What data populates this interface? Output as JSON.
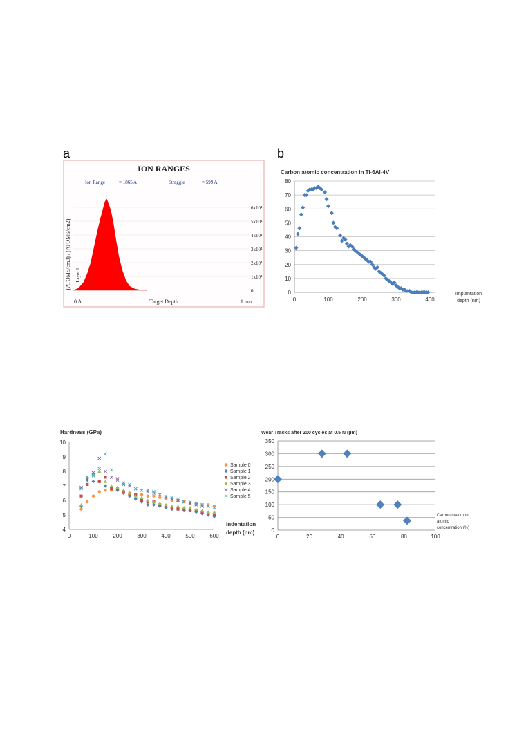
{
  "panels": {
    "a": "a",
    "b": "b"
  },
  "chart_data": [
    {
      "type": "area",
      "title": "ION RANGES",
      "ion_range_label": "Ion Range",
      "ion_range_value": "= 1865 A",
      "straggle_label": "Straggle",
      "straggle_value": "= 599 A",
      "xlabel": "Target Depth",
      "ylabel": "(ATOMS/cm3) / (ATOMS/cm2)",
      "layer_label": "Layer 1",
      "x_tick_labels": [
        "0 A",
        "1 um"
      ],
      "xlim": [
        0,
        10000
      ],
      "ylim": [
        0,
        70000
      ],
      "y_ticks": [
        {
          "v": 0,
          "label": "0"
        },
        {
          "v": 10000,
          "label": "1x10⁴"
        },
        {
          "v": 20000,
          "label": "2x10⁴"
        },
        {
          "v": 30000,
          "label": "3x10⁴"
        },
        {
          "v": 40000,
          "label": "4x10⁴"
        },
        {
          "v": 50000,
          "label": "5x10⁴"
        },
        {
          "v": 60000,
          "label": "6x10⁴"
        }
      ],
      "color": "#ff0000",
      "x": [
        0,
        300,
        600,
        800,
        1000,
        1200,
        1400,
        1550,
        1700,
        1800,
        1900,
        2000,
        2150,
        2300,
        2450,
        2600,
        2800,
        3000,
        3200,
        3500,
        3800,
        4200
      ],
      "y": [
        0,
        1500,
        6000,
        12000,
        20000,
        32000,
        44000,
        52000,
        59000,
        64000,
        66000,
        63000,
        57000,
        47000,
        35000,
        24000,
        14000,
        7000,
        3000,
        1000,
        300,
        0
      ]
    },
    {
      "type": "scatter",
      "title": "Carbon atomic concentration in Ti-6Al-4V",
      "xlabel_lines": [
        "Implantation",
        "depth (nm)"
      ],
      "xlim": [
        0,
        400
      ],
      "ylim": [
        0,
        80
      ],
      "x_ticks": [
        0,
        100,
        200,
        300,
        400
      ],
      "y_ticks": [
        0,
        10,
        20,
        30,
        40,
        50,
        60,
        70,
        80
      ],
      "color": "#4a7ebb",
      "points": [
        [
          5,
          32
        ],
        [
          10,
          42
        ],
        [
          15,
          46
        ],
        [
          20,
          56
        ],
        [
          25,
          61
        ],
        [
          30,
          70
        ],
        [
          35,
          70
        ],
        [
          40,
          73
        ],
        [
          45,
          74
        ],
        [
          50,
          74
        ],
        [
          55,
          74
        ],
        [
          60,
          75
        ],
        [
          65,
          75
        ],
        [
          70,
          76
        ],
        [
          75,
          75
        ],
        [
          80,
          74
        ],
        [
          90,
          72
        ],
        [
          95,
          67
        ],
        [
          100,
          62
        ],
        [
          110,
          57
        ],
        [
          115,
          50
        ],
        [
          120,
          47
        ],
        [
          125,
          46
        ],
        [
          135,
          41
        ],
        [
          140,
          37
        ],
        [
          145,
          39
        ],
        [
          150,
          38
        ],
        [
          155,
          35
        ],
        [
          160,
          33
        ],
        [
          165,
          34
        ],
        [
          170,
          33
        ],
        [
          175,
          31
        ],
        [
          180,
          30
        ],
        [
          185,
          29
        ],
        [
          190,
          28
        ],
        [
          195,
          27
        ],
        [
          200,
          26
        ],
        [
          205,
          25
        ],
        [
          210,
          24
        ],
        [
          215,
          23
        ],
        [
          220,
          22
        ],
        [
          225,
          22
        ],
        [
          230,
          20
        ],
        [
          235,
          18
        ],
        [
          240,
          17
        ],
        [
          245,
          18
        ],
        [
          250,
          15
        ],
        [
          255,
          14
        ],
        [
          260,
          13
        ],
        [
          265,
          12
        ],
        [
          270,
          10
        ],
        [
          275,
          9
        ],
        [
          280,
          8
        ],
        [
          285,
          7
        ],
        [
          290,
          6
        ],
        [
          295,
          7
        ],
        [
          300,
          5
        ],
        [
          305,
          4
        ],
        [
          310,
          3
        ],
        [
          315,
          3
        ],
        [
          320,
          2
        ],
        [
          325,
          2
        ],
        [
          330,
          1
        ],
        [
          335,
          1
        ],
        [
          340,
          1
        ],
        [
          345,
          0
        ],
        [
          350,
          0
        ],
        [
          355,
          0
        ],
        [
          360,
          0
        ],
        [
          365,
          0
        ],
        [
          370,
          0
        ],
        [
          375,
          0
        ],
        [
          380,
          0
        ],
        [
          385,
          0
        ],
        [
          390,
          0
        ],
        [
          395,
          0
        ]
      ]
    },
    {
      "type": "scatter",
      "title": "Hardness (GPa)",
      "xlabel_lines": [
        "indentation",
        "depth (nm)"
      ],
      "xlim": [
        0,
        600
      ],
      "ylim": [
        4,
        10
      ],
      "x_ticks": [
        0,
        100,
        200,
        300,
        400,
        500,
        600
      ],
      "y_ticks": [
        4,
        5,
        6,
        7,
        8,
        9,
        10
      ],
      "legend_position": "right",
      "series": [
        {
          "name": "Sample 0",
          "color": "#f79646",
          "marker": "circle",
          "x": [
            50,
            75,
            100,
            125,
            150,
            175,
            200,
            225,
            250,
            275,
            300,
            325,
            350,
            375,
            400,
            425,
            450,
            475,
            500,
            525,
            550,
            575,
            600
          ],
          "y": [
            5.4,
            5.9,
            6.3,
            6.6,
            6.7,
            6.7,
            6.7,
            6.6,
            6.5,
            6.4,
            6.4,
            6.3,
            6.3,
            6.2,
            6.1,
            6.0,
            6.0,
            5.9,
            5.8,
            5.8,
            5.7,
            5.7,
            5.6
          ]
        },
        {
          "name": "Sample 1",
          "color": "#4f81bd",
          "marker": "diamond",
          "x": [
            50,
            75,
            100,
            125,
            150,
            175,
            200,
            225,
            250,
            275,
            300,
            325,
            350,
            375,
            400,
            425,
            450,
            475,
            500,
            525,
            550,
            575,
            600
          ],
          "y": [
            5.6,
            7.4,
            7.3,
            7.3,
            7.0,
            6.9,
            6.7,
            6.5,
            6.3,
            6.1,
            5.9,
            5.7,
            5.7,
            5.6,
            5.5,
            5.4,
            5.4,
            5.3,
            5.3,
            5.2,
            5.1,
            5.0,
            4.9
          ]
        },
        {
          "name": "Sample 2",
          "color": "#c0504d",
          "marker": "square",
          "x": [
            50,
            75,
            100,
            125,
            150,
            175,
            200,
            225,
            250,
            275,
            300,
            325,
            350,
            375,
            400,
            425,
            450,
            475,
            500,
            525,
            550,
            575,
            600
          ],
          "y": [
            6.3,
            7.1,
            7.8,
            7.3,
            7.6,
            6.8,
            6.8,
            6.6,
            6.4,
            6.4,
            6.0,
            5.9,
            5.9,
            5.7,
            5.6,
            5.5,
            5.4,
            5.4,
            5.3,
            5.3,
            5.2,
            5.1,
            5.0
          ]
        },
        {
          "name": "Sample 3",
          "color": "#9bbb59",
          "marker": "triangle",
          "x": [
            50,
            75,
            100,
            125,
            150,
            175,
            200,
            225,
            250,
            275,
            300,
            325,
            350,
            375,
            400,
            425,
            450,
            475,
            500,
            525,
            550,
            575,
            600
          ],
          "y": [
            5.7,
            7.6,
            7.8,
            8.0,
            7.3,
            7.0,
            6.9,
            6.7,
            6.5,
            6.3,
            6.2,
            6.0,
            5.9,
            5.8,
            5.7,
            5.6,
            5.6,
            5.5,
            5.5,
            5.4,
            5.3,
            5.2,
            5.2
          ]
        },
        {
          "name": "Sample 4",
          "color": "#8064a2",
          "marker": "x",
          "x": [
            50,
            75,
            100,
            125,
            150,
            175,
            200,
            225,
            250,
            275,
            300,
            325,
            350,
            375,
            400,
            425,
            450,
            475,
            500,
            525,
            550,
            575,
            600
          ],
          "y": [
            6.9,
            7.5,
            7.9,
            8.9,
            8.0,
            7.6,
            7.4,
            7.1,
            7.0,
            6.8,
            6.7,
            6.6,
            6.5,
            6.4,
            6.2,
            6.1,
            6.0,
            5.9,
            5.8,
            5.7,
            5.6,
            5.6,
            5.5
          ]
        },
        {
          "name": "Sample 5",
          "color": "#4bacc6",
          "marker": "x",
          "x": [
            50,
            75,
            100,
            125,
            150,
            175,
            200,
            225,
            250,
            275,
            300,
            325,
            350,
            375,
            400,
            425,
            450,
            475,
            500,
            525,
            550,
            575,
            600
          ],
          "y": [
            6.8,
            7.6,
            7.7,
            8.2,
            9.2,
            8.1,
            7.5,
            7.2,
            7.1,
            6.8,
            6.7,
            6.7,
            6.6,
            6.4,
            6.3,
            6.2,
            6.1,
            5.9,
            5.9,
            5.8,
            5.7,
            5.6,
            5.5
          ]
        }
      ]
    },
    {
      "type": "scatter",
      "title": "Wear Tracks after 200 cycles at 0.5 N (µm)",
      "xlabel_lines": [
        "Carbon maximum",
        "atomic",
        "concentration (%)"
      ],
      "xlim": [
        0,
        100
      ],
      "ylim": [
        0,
        350
      ],
      "x_ticks": [
        0,
        20,
        40,
        60,
        80,
        100
      ],
      "y_ticks": [
        0,
        50,
        100,
        150,
        200,
        250,
        300,
        350
      ],
      "color": "#4f81bd",
      "points": [
        [
          0,
          200
        ],
        [
          28,
          300
        ],
        [
          44,
          300
        ],
        [
          65,
          100
        ],
        [
          76,
          100
        ],
        [
          82,
          37
        ]
      ]
    }
  ]
}
